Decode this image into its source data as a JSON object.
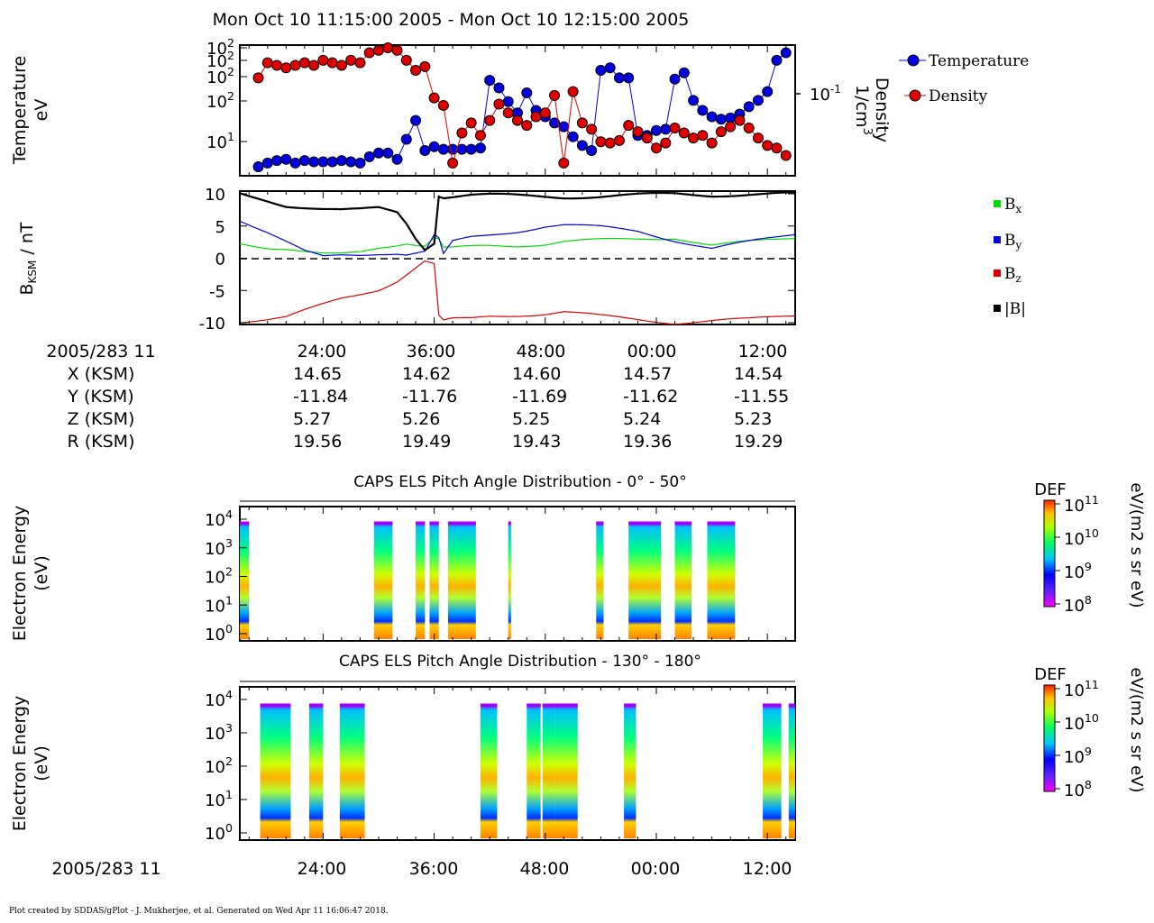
{
  "title": "Mon Oct 10 11:15:00 2005 - Mon Oct 10 12:15:00 2005",
  "footer": "Plot created by SDDAS/gPlot - J. Mukherjee, et al.  Generated on Wed Apr 11 16:06:47 2018.",
  "colors": {
    "temperature": "#0000e0",
    "density": "#e00000",
    "bx": "#00dd00",
    "by": "#0000dd",
    "bz": "#dd0000",
    "btot": "#000000"
  },
  "chart_data": [
    {
      "type": "scatter",
      "ylabel": [
        "Temperature",
        "eV"
      ],
      "ylabel_right": [
        "Density",
        "1/cm3"
      ],
      "y_ticks_left": [
        "10^2",
        "10^2",
        "10^2",
        "10^2",
        "10^1"
      ],
      "y_tick_right": "10^-1",
      "legend": {
        "placement": "right",
        "entries": [
          "Temperature",
          "Density"
        ]
      },
      "x_minutes": [
        17,
        18,
        19,
        20,
        21,
        22,
        23,
        24,
        25,
        26,
        27,
        28,
        29,
        30,
        31,
        32,
        33,
        34,
        35,
        36,
        37,
        38,
        39,
        40,
        41,
        42,
        43,
        44,
        45,
        46,
        47,
        48,
        49,
        50,
        51,
        52,
        53,
        54,
        55,
        56,
        57,
        58,
        59,
        60,
        61,
        62,
        63,
        64,
        65,
        66,
        67,
        68,
        69,
        70,
        71,
        72,
        73,
        74
      ],
      "series": [
        {
          "name": "Temperature",
          "values": [
            0.05,
            0.08,
            0.1,
            0.11,
            0.08,
            0.1,
            0.09,
            0.09,
            0.09,
            0.1,
            0.09,
            0.08,
            0.13,
            0.16,
            0.16,
            0.11,
            0.27,
            0.42,
            0.18,
            0.21,
            0.19,
            0.19,
            0.19,
            0.19,
            0.2,
            0.74,
            0.68,
            0.57,
            0.48,
            0.64,
            0.5,
            0.45,
            0.4,
            0.37,
            0.29,
            0.22,
            0.18,
            0.82,
            0.84,
            0.76,
            0.76,
            0.3,
            0.3,
            0.34,
            0.35,
            0.75,
            0.8,
            0.58,
            0.5,
            0.45,
            0.43,
            0.44,
            0.47,
            0.53,
            0.58,
            0.65,
            0.9,
            0.96
          ]
        },
        {
          "name": "Density",
          "values": [
            0.76,
            0.88,
            0.86,
            0.84,
            0.86,
            0.88,
            0.86,
            0.9,
            0.88,
            0.86,
            0.9,
            0.88,
            0.96,
            0.98,
            1.0,
            0.98,
            0.9,
            0.82,
            0.85,
            0.6,
            0.54,
            0.08,
            0.32,
            0.4,
            0.3,
            0.42,
            0.55,
            0.48,
            0.42,
            0.38,
            0.45,
            0.48,
            0.62,
            0.08,
            0.65,
            0.4,
            0.35,
            0.25,
            0.24,
            0.26,
            0.38,
            0.33,
            0.28,
            0.2,
            0.24,
            0.36,
            0.32,
            0.28,
            0.3,
            0.24,
            0.33,
            0.37,
            0.42,
            0.36,
            0.28,
            0.22,
            0.2,
            0.14
          ]
        }
      ]
    },
    {
      "type": "line",
      "ylabel": "B_KSM / nT",
      "ylim": [
        -10,
        10
      ],
      "y_ticks": [
        "10",
        "5",
        "0",
        "-5",
        "-10"
      ],
      "legend": {
        "placement": "right",
        "entries": [
          "Bx",
          "By",
          "Bz",
          "|B|"
        ]
      },
      "x_minutes": [
        15,
        18,
        20,
        22,
        24,
        26,
        28,
        30,
        32,
        33,
        34,
        35,
        36,
        36.5,
        37,
        38,
        40,
        42,
        45,
        48,
        50,
        54,
        58,
        62,
        66,
        70,
        75
      ],
      "series": [
        {
          "name": "Bx",
          "values": [
            2.5,
            1.5,
            1.2,
            0.8,
            0.6,
            0.8,
            1.2,
            1.8,
            2.1,
            2.3,
            2.0,
            1.8,
            3.0,
            2.8,
            1.5,
            1.5,
            1.8,
            2.0,
            2.0,
            2.2,
            2.6,
            2.8,
            3.0,
            3.2,
            2.0,
            2.5,
            3.2
          ]
        },
        {
          "name": "By",
          "values": [
            6.0,
            4.0,
            2.5,
            1.0,
            0.2,
            0.5,
            0.6,
            0.8,
            0.8,
            0.6,
            0.8,
            1.0,
            3.5,
            3.0,
            0.5,
            2.5,
            3.2,
            3.6,
            4.2,
            5.0,
            5.2,
            4.8,
            4.2,
            2.8,
            1.5,
            2.5,
            3.8
          ]
        },
        {
          "name": "Bz",
          "values": [
            -9.8,
            -9.5,
            -9.2,
            -8.2,
            -7.2,
            -6.2,
            -5.5,
            -4.8,
            -3.5,
            -2.5,
            -1.5,
            -0.5,
            -1.0,
            -9.0,
            -9.8,
            -9.5,
            -9.4,
            -9.0,
            -8.8,
            -8.6,
            -8.3,
            -9.0,
            -9.5,
            -10.0,
            -9.7,
            -9.5,
            -8.8
          ]
        },
        {
          "name": "|B|",
          "values": [
            10.0,
            9.0,
            8.2,
            7.9,
            7.6,
            7.4,
            7.5,
            7.8,
            7.2,
            5.5,
            3.2,
            1.5,
            2.5,
            9.8,
            9.5,
            9.6,
            9.8,
            9.8,
            9.7,
            9.6,
            9.5,
            9.6,
            9.8,
            10.0,
            9.8,
            9.9,
            10.0
          ]
        }
      ]
    },
    {
      "type": "table",
      "label_time": "2005/283 11",
      "tick_labels": [
        "24:00",
        "36:00",
        "48:00",
        "00:00",
        "12:00"
      ],
      "rows": [
        {
          "label": "X (KSM)",
          "values": [
            "14.65",
            "14.62",
            "14.60",
            "14.57",
            "14.54"
          ]
        },
        {
          "label": "Y (KSM)",
          "values": [
            "-11.84",
            "-11.76",
            "-11.69",
            "-11.62",
            "-11.55"
          ]
        },
        {
          "label": "Z (KSM)",
          "values": [
            "5.27",
            "5.26",
            "5.25",
            "5.24",
            "5.23"
          ]
        },
        {
          "label": "R (KSM)",
          "values": [
            "19.56",
            "19.49",
            "19.43",
            "19.36",
            "19.29"
          ]
        }
      ]
    },
    {
      "type": "heatmap",
      "title": "CAPS ELS Pitch Angle Distribution - 0° - 50°",
      "ylabel": [
        "Electron Energy",
        "(eV)"
      ],
      "y_ticks": [
        "10^4",
        "10^3",
        "10^2",
        "10^1",
        "10^0"
      ],
      "colorbar": {
        "label_top": "DEF",
        "unit": "eV/(m2 s sr eV)",
        "ticks": [
          "10^11",
          "10^10",
          "10^9",
          "10^8"
        ]
      },
      "segments_minutes": [
        [
          15.0,
          16.0
        ],
        [
          29.5,
          31.5
        ],
        [
          34.0,
          35.0
        ],
        [
          35.5,
          36.5
        ],
        [
          37.5,
          40.5
        ],
        [
          44.0,
          44.3
        ],
        [
          53.5,
          54.3
        ],
        [
          57.0,
          60.5
        ],
        [
          62.0,
          63.8
        ],
        [
          65.5,
          68.5
        ]
      ]
    },
    {
      "type": "heatmap",
      "title": "CAPS ELS Pitch Angle Distribution - 130° - 180°",
      "ylabel": [
        "Electron Energy",
        "(eV)"
      ],
      "y_ticks": [
        "10^4",
        "10^3",
        "10^2",
        "10^1",
        "10^0"
      ],
      "colorbar": {
        "label_top": "DEF",
        "unit": "eV/(m2 s sr eV)",
        "ticks": [
          "10^11",
          "10^10",
          "10^9",
          "10^8"
        ]
      },
      "segments_minutes": [
        [
          17.2,
          20.5
        ],
        [
          22.5,
          24.0
        ],
        [
          25.8,
          28.5
        ],
        [
          41.0,
          42.8
        ],
        [
          46.0,
          47.5
        ],
        [
          47.7,
          49.0
        ],
        [
          49.0,
          51.5
        ],
        [
          56.5,
          57.8
        ],
        [
          71.5,
          73.5
        ],
        [
          74.3,
          75.0
        ]
      ]
    },
    {
      "type": "table",
      "label_time": "2005/283 11",
      "tick_labels": [
        "24:00",
        "36:00",
        "48:00",
        "00:00",
        "12:00"
      ]
    }
  ]
}
